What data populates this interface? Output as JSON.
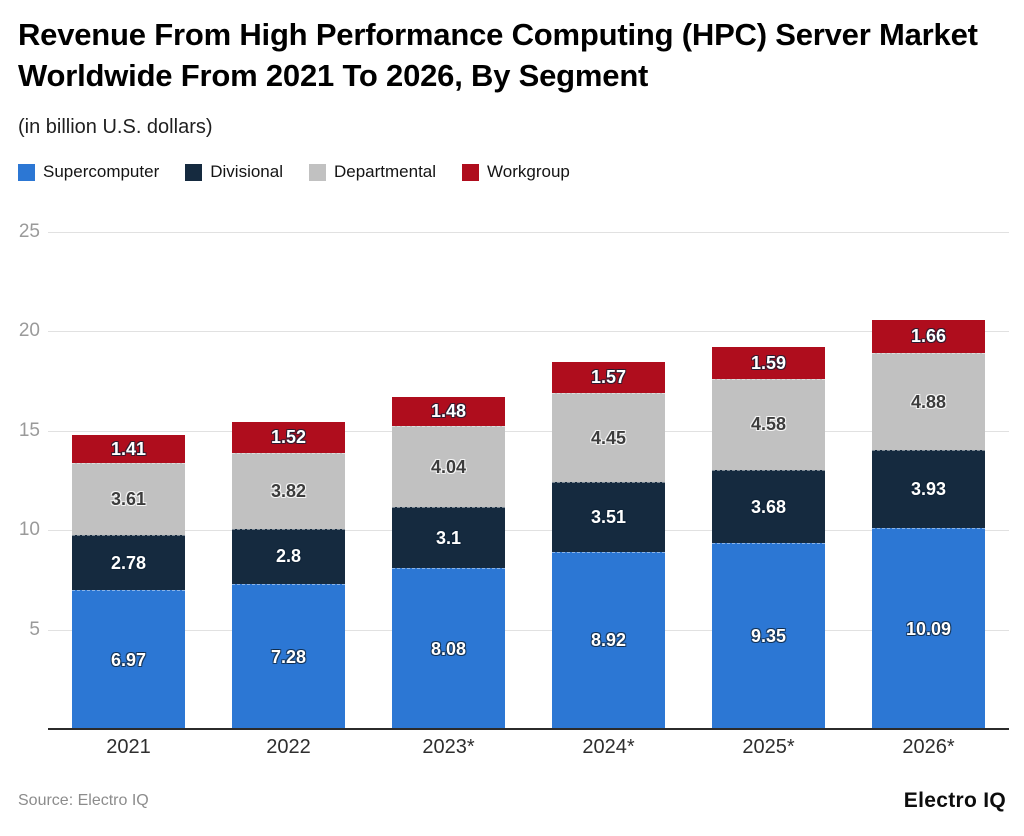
{
  "header": {
    "title": "Revenue From High Performance Computing (HPC) Server Market Worldwide From 2021 To 2026, By Segment",
    "subtitle": "(in billion U.S. dollars)"
  },
  "footer": {
    "source": "Source: Electro IQ",
    "brand": "Electro IQ"
  },
  "chart_data": {
    "type": "bar",
    "stacked": true,
    "title": "Revenue From High Performance Computing (HPC) Server Market Worldwide From 2021 To 2026, By Segment",
    "ylabel": "(in billion U.S. dollars)",
    "xlabel": "",
    "categories": [
      "2021",
      "2022",
      "2023*",
      "2024*",
      "2025*",
      "2026*"
    ],
    "series": [
      {
        "name": "Supercomputer",
        "color": "#2C77D4",
        "label_color": "#ffffff",
        "values": [
          6.97,
          7.28,
          8.08,
          8.92,
          9.35,
          10.09
        ]
      },
      {
        "name": "Divisional",
        "color": "#152A3F",
        "label_color": "#ffffff",
        "values": [
          2.78,
          2.8,
          3.1,
          3.51,
          3.68,
          3.93
        ]
      },
      {
        "name": "Departmental",
        "color": "#C1C1C1",
        "label_color": "#3c3c3c",
        "values": [
          3.61,
          3.82,
          4.04,
          4.45,
          4.58,
          4.88
        ]
      },
      {
        "name": "Workgroup",
        "color": "#AF0D1D",
        "label_color": "#ffffff",
        "values": [
          1.41,
          1.52,
          1.48,
          1.57,
          1.59,
          1.66
        ]
      }
    ],
    "yticks": [
      5,
      10,
      15,
      20,
      25
    ],
    "ylim": [
      0,
      25
    ],
    "grid": true,
    "legend_position": "top",
    "axis_color": "#2b2b2b",
    "gridline_color": "#e1e1e1",
    "tick_label_color": "#9a9a9a"
  }
}
